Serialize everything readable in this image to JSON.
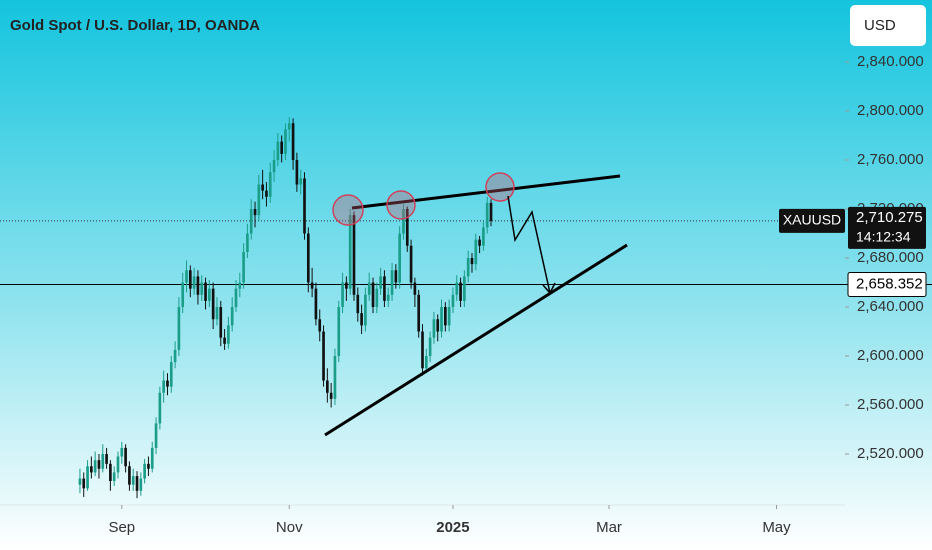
{
  "chart_data": {
    "type": "candlestick",
    "title": "Gold Spot / U.S. Dollar, 1D, OANDA",
    "currency": "USD",
    "symbol": "XAUUSD",
    "up_color": "#1a9e8a",
    "down_color": "#111111",
    "ylim": [
      2478.4,
      2890.6
    ],
    "yticks": [
      {
        "value": 2520,
        "label": "2,520.000"
      },
      {
        "value": 2560,
        "label": "2,560.000"
      },
      {
        "value": 2600,
        "label": "2,600.000"
      },
      {
        "value": 2640,
        "label": "2,640.000"
      },
      {
        "value": 2680,
        "label": "2,680.000"
      },
      {
        "value": 2720,
        "label": "2,720.000"
      },
      {
        "value": 2760,
        "label": "2,760.000"
      },
      {
        "value": 2800,
        "label": "2,800.000"
      },
      {
        "value": 2840,
        "label": "2,840.000"
      }
    ],
    "xlim": [
      -21,
      201
    ],
    "xticks": [
      {
        "value": 11,
        "label": "Sep"
      },
      {
        "value": 55,
        "label": "Nov"
      },
      {
        "value": 98,
        "label": "2025"
      },
      {
        "value": 139,
        "label": "Mar"
      },
      {
        "value": 183,
        "label": "May"
      }
    ],
    "last_price": {
      "value": 2710.275,
      "label": "2,710.275"
    },
    "countdown": "14:12:34",
    "level": {
      "value": 2658.352,
      "label": "2,658.352"
    },
    "x": [
      0,
      1,
      2,
      3,
      4,
      5,
      6,
      7,
      8,
      9,
      10,
      11,
      12,
      13,
      14,
      15,
      16,
      17,
      18,
      19,
      20,
      21,
      22,
      23,
      24,
      25,
      26,
      27,
      28,
      29,
      30,
      31,
      32,
      33,
      34,
      35,
      36,
      37,
      38,
      39,
      40,
      41,
      42,
      43,
      44,
      45,
      46,
      47,
      48,
      49,
      50,
      51,
      52,
      53,
      54,
      55,
      56,
      57,
      58,
      59,
      60,
      61,
      62,
      63,
      64,
      65,
      66,
      67,
      68,
      69,
      70,
      71,
      72,
      73,
      74,
      75,
      76,
      77,
      78,
      79,
      80,
      81,
      82,
      83,
      84,
      85,
      86,
      87,
      88,
      89,
      90,
      91,
      92,
      93,
      94,
      95,
      96,
      97,
      98,
      99,
      100,
      101,
      102,
      103,
      104,
      105,
      106,
      107,
      108
    ],
    "candles": [
      [
        2495,
        2508,
        2488,
        2500
      ],
      [
        2500,
        2505,
        2485,
        2492
      ],
      [
        2492,
        2515,
        2490,
        2510
      ],
      [
        2510,
        2518,
        2500,
        2505
      ],
      [
        2505,
        2522,
        2502,
        2515
      ],
      [
        2515,
        2520,
        2500,
        2508
      ],
      [
        2508,
        2528,
        2505,
        2520
      ],
      [
        2520,
        2525,
        2508,
        2512
      ],
      [
        2512,
        2515,
        2490,
        2498
      ],
      [
        2498,
        2510,
        2494,
        2505
      ],
      [
        2505,
        2522,
        2500,
        2518
      ],
      [
        2518,
        2530,
        2512,
        2525
      ],
      [
        2525,
        2528,
        2505,
        2510
      ],
      [
        2510,
        2514,
        2490,
        2495
      ],
      [
        2495,
        2508,
        2490,
        2502
      ],
      [
        2502,
        2506,
        2484,
        2490
      ],
      [
        2490,
        2505,
        2486,
        2500
      ],
      [
        2500,
        2516,
        2496,
        2512
      ],
      [
        2512,
        2518,
        2502,
        2508
      ],
      [
        2508,
        2530,
        2505,
        2525
      ],
      [
        2525,
        2550,
        2520,
        2545
      ],
      [
        2545,
        2575,
        2540,
        2570
      ],
      [
        2570,
        2588,
        2562,
        2580
      ],
      [
        2580,
        2586,
        2568,
        2575
      ],
      [
        2575,
        2600,
        2570,
        2595
      ],
      [
        2595,
        2612,
        2590,
        2605
      ],
      [
        2605,
        2648,
        2600,
        2640
      ],
      [
        2640,
        2668,
        2635,
        2660
      ],
      [
        2660,
        2678,
        2652,
        2670
      ],
      [
        2670,
        2674,
        2648,
        2655
      ],
      [
        2655,
        2672,
        2650,
        2665
      ],
      [
        2665,
        2670,
        2642,
        2650
      ],
      [
        2650,
        2666,
        2645,
        2660
      ],
      [
        2660,
        2664,
        2638,
        2645
      ],
      [
        2645,
        2662,
        2640,
        2655
      ],
      [
        2655,
        2660,
        2622,
        2630
      ],
      [
        2630,
        2648,
        2625,
        2640
      ],
      [
        2640,
        2645,
        2608,
        2615
      ],
      [
        2615,
        2622,
        2605,
        2610
      ],
      [
        2610,
        2632,
        2606,
        2625
      ],
      [
        2625,
        2648,
        2620,
        2640
      ],
      [
        2640,
        2662,
        2636,
        2655
      ],
      [
        2655,
        2668,
        2648,
        2660
      ],
      [
        2660,
        2692,
        2655,
        2685
      ],
      [
        2685,
        2708,
        2680,
        2700
      ],
      [
        2700,
        2728,
        2695,
        2720
      ],
      [
        2720,
        2726,
        2705,
        2715
      ],
      [
        2715,
        2748,
        2710,
        2740
      ],
      [
        2740,
        2752,
        2728,
        2735
      ],
      [
        2735,
        2742,
        2722,
        2730
      ],
      [
        2730,
        2758,
        2725,
        2750
      ],
      [
        2750,
        2768,
        2742,
        2760
      ],
      [
        2760,
        2782,
        2755,
        2775
      ],
      [
        2775,
        2780,
        2758,
        2765
      ],
      [
        2765,
        2790,
        2760,
        2785
      ],
      [
        2785,
        2795,
        2775,
        2790
      ],
      [
        2790,
        2794,
        2752,
        2760
      ],
      [
        2760,
        2766,
        2734,
        2740
      ],
      [
        2740,
        2752,
        2732,
        2745
      ],
      [
        2745,
        2750,
        2695,
        2700
      ],
      [
        2700,
        2705,
        2652,
        2660
      ],
      [
        2660,
        2672,
        2648,
        2655
      ],
      [
        2655,
        2660,
        2625,
        2630
      ],
      [
        2630,
        2638,
        2612,
        2620
      ],
      [
        2620,
        2625,
        2575,
        2580
      ],
      [
        2580,
        2590,
        2562,
        2570
      ],
      [
        2570,
        2578,
        2558,
        2565
      ],
      [
        2565,
        2606,
        2560,
        2600
      ],
      [
        2600,
        2645,
        2595,
        2640
      ],
      [
        2640,
        2668,
        2635,
        2660
      ],
      [
        2660,
        2665,
        2645,
        2655
      ],
      [
        2655,
        2720,
        2650,
        2715
      ],
      [
        2715,
        2718,
        2645,
        2650
      ],
      [
        2650,
        2656,
        2628,
        2635
      ],
      [
        2635,
        2642,
        2618,
        2625
      ],
      [
        2625,
        2656,
        2620,
        2650
      ],
      [
        2650,
        2668,
        2645,
        2660
      ],
      [
        2660,
        2664,
        2635,
        2640
      ],
      [
        2640,
        2660,
        2635,
        2655
      ],
      [
        2655,
        2672,
        2650,
        2665
      ],
      [
        2665,
        2670,
        2640,
        2645
      ],
      [
        2645,
        2656,
        2640,
        2650
      ],
      [
        2650,
        2676,
        2645,
        2670
      ],
      [
        2670,
        2675,
        2655,
        2660
      ],
      [
        2660,
        2706,
        2655,
        2700
      ],
      [
        2700,
        2724,
        2695,
        2720
      ],
      [
        2720,
        2722,
        2685,
        2690
      ],
      [
        2690,
        2695,
        2655,
        2660
      ],
      [
        2660,
        2664,
        2640,
        2650
      ],
      [
        2650,
        2654,
        2615,
        2620
      ],
      [
        2620,
        2626,
        2584,
        2590
      ],
      [
        2590,
        2606,
        2586,
        2600
      ],
      [
        2600,
        2620,
        2595,
        2615
      ],
      [
        2615,
        2636,
        2610,
        2630
      ],
      [
        2630,
        2634,
        2612,
        2620
      ],
      [
        2620,
        2646,
        2615,
        2640
      ],
      [
        2640,
        2644,
        2620,
        2625
      ],
      [
        2625,
        2646,
        2620,
        2640
      ],
      [
        2640,
        2656,
        2635,
        2650
      ],
      [
        2650,
        2666,
        2645,
        2660
      ],
      [
        2660,
        2664,
        2640,
        2645
      ],
      [
        2645,
        2670,
        2640,
        2665
      ],
      [
        2665,
        2686,
        2660,
        2680
      ],
      [
        2680,
        2684,
        2668,
        2675
      ],
      [
        2675,
        2700,
        2670,
        2695
      ],
      [
        2695,
        2698,
        2684,
        2690
      ],
      [
        2690,
        2710,
        2686,
        2705
      ],
      [
        2705,
        2730,
        2700,
        2725
      ],
      [
        2725,
        2728,
        2706,
        2710.275
      ]
    ]
  }
}
